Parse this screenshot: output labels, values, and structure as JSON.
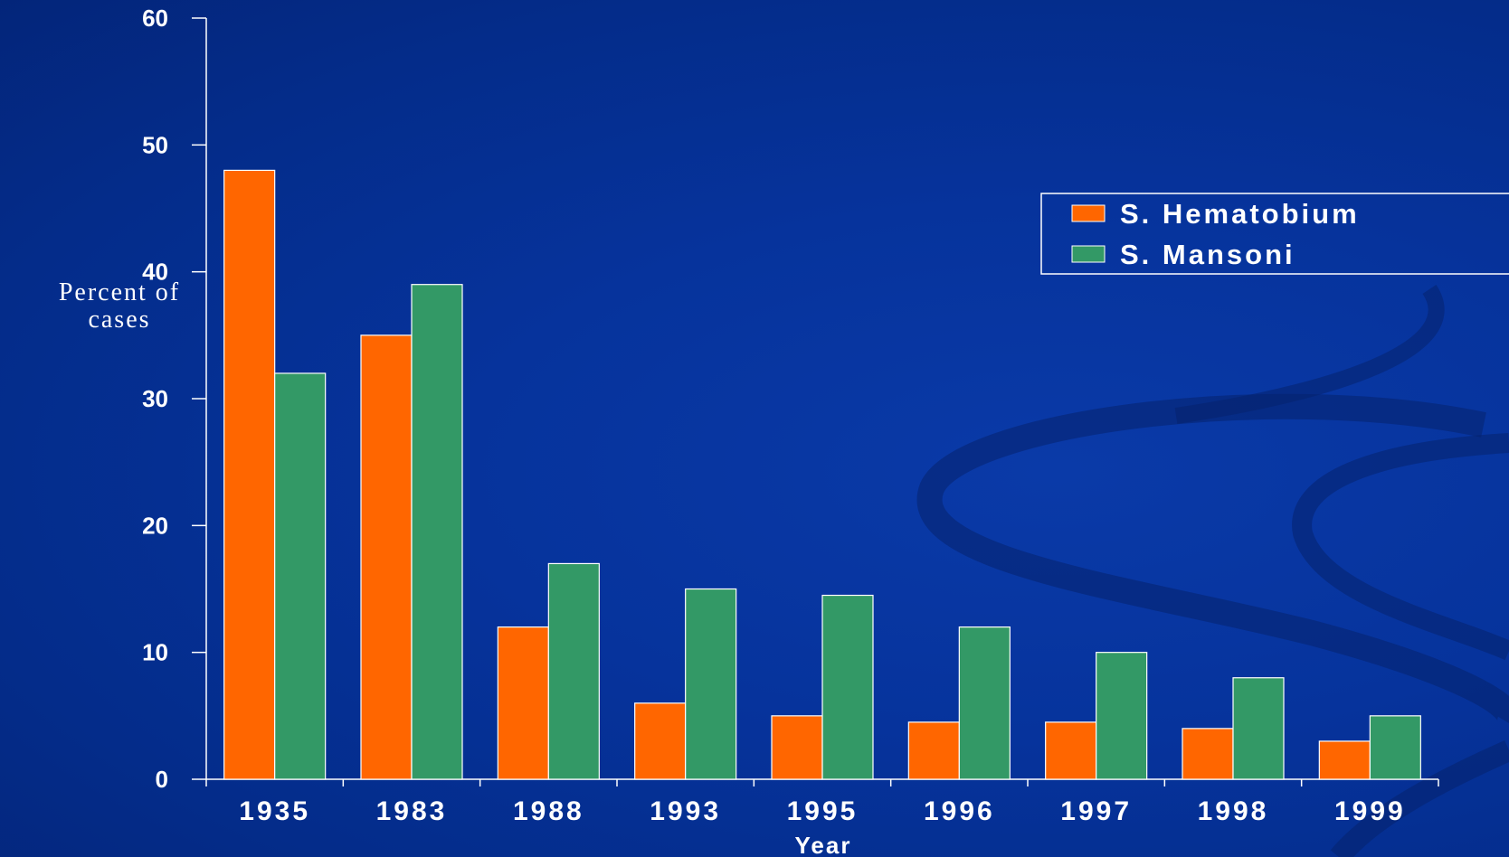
{
  "chart_data": {
    "type": "bar",
    "xlabel": "Year",
    "ylabel_lines": [
      "Percent of",
      "cases"
    ],
    "categories": [
      "1935",
      "1983",
      "1988",
      "1993",
      "1995",
      "1996",
      "1997",
      "1998",
      "1999"
    ],
    "series": [
      {
        "name": "S. Hematobium",
        "color": "#ff6600",
        "values": [
          48,
          35,
          12,
          6,
          5,
          4.5,
          4.5,
          4,
          3
        ]
      },
      {
        "name": "S. Mansoni",
        "color": "#339966",
        "values": [
          32,
          39,
          17,
          15,
          14.5,
          12,
          10,
          8,
          5
        ]
      }
    ],
    "ylim": [
      0,
      60
    ],
    "yticks": [
      0,
      10,
      20,
      30,
      40,
      50,
      60
    ],
    "grid": false,
    "legend_position": "top-right",
    "background_color": "#06339c",
    "axis_color": "#ffffff"
  }
}
